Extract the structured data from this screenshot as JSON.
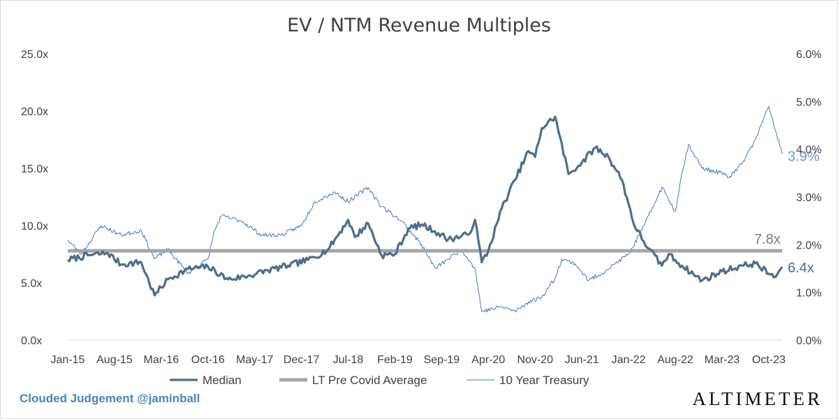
{
  "footer": {
    "credit": "Clouded Judgement @jaminball",
    "brand": "Altimeter"
  },
  "chart_data": {
    "type": "line",
    "title": "EV / NTM Revenue Multiples",
    "left_axis": {
      "ylim": [
        0,
        25
      ],
      "ticks": [
        0,
        5,
        10,
        15,
        20,
        25
      ],
      "tick_labels": [
        "0.0x",
        "5.0x",
        "10.0x",
        "15.0x",
        "20.0x",
        "25.0x"
      ]
    },
    "right_axis": {
      "ylim": [
        0,
        6
      ],
      "ticks": [
        0,
        1,
        2,
        3,
        4,
        5,
        6
      ],
      "tick_labels": [
        "0.0%",
        "1.0%",
        "2.0%",
        "3.0%",
        "4.0%",
        "5.0%",
        "6.0%"
      ]
    },
    "x_tick_labels": [
      "Jan-15",
      "Aug-15",
      "Mar-16",
      "Oct-16",
      "May-17",
      "Dec-17",
      "Jul-18",
      "Feb-19",
      "Sep-19",
      "Apr-20",
      "Nov-20",
      "Jun-21",
      "Jan-22",
      "Aug-22",
      "Mar-23",
      "Oct-23"
    ],
    "x_range": [
      "Jan-15",
      "Dec-23"
    ],
    "grid": false,
    "legend_position": "bottom",
    "series": [
      {
        "name": "Median",
        "axis": "left",
        "color": "#4f6e8a",
        "points": [
          [
            "Jan-15",
            7.0
          ],
          [
            "Apr-15",
            7.4
          ],
          [
            "Jul-15",
            7.6
          ],
          [
            "Sep-15",
            6.6
          ],
          [
            "Dec-15",
            6.8
          ],
          [
            "Feb-16",
            3.9
          ],
          [
            "Apr-16",
            5.3
          ],
          [
            "Jul-16",
            6.2
          ],
          [
            "Oct-16",
            6.4
          ],
          [
            "Jan-17",
            5.3
          ],
          [
            "Apr-17",
            5.6
          ],
          [
            "Jul-17",
            6.1
          ],
          [
            "Oct-17",
            6.5
          ],
          [
            "Jan-18",
            7.0
          ],
          [
            "Apr-18",
            7.9
          ],
          [
            "Jul-18",
            10.5
          ],
          [
            "Aug-18",
            9.0
          ],
          [
            "Oct-18",
            10.2
          ],
          [
            "Dec-18",
            7.4
          ],
          [
            "Feb-19",
            7.5
          ],
          [
            "Apr-19",
            9.7
          ],
          [
            "Jun-19",
            10.1
          ],
          [
            "Aug-19",
            9.5
          ],
          [
            "Oct-19",
            8.8
          ],
          [
            "Jan-20",
            9.2
          ],
          [
            "Feb-20",
            10.5
          ],
          [
            "Mar-20",
            6.8
          ],
          [
            "Apr-20",
            7.8
          ],
          [
            "Jun-20",
            11.5
          ],
          [
            "Aug-20",
            14.0
          ],
          [
            "Oct-20",
            16.5
          ],
          [
            "Nov-20",
            16.0
          ],
          [
            "Dec-20",
            18.5
          ],
          [
            "Feb-21",
            19.5
          ],
          [
            "Apr-21",
            14.5
          ],
          [
            "Jun-21",
            15.5
          ],
          [
            "Aug-21",
            16.8
          ],
          [
            "Oct-21",
            16.0
          ],
          [
            "Dec-21",
            14.0
          ],
          [
            "Feb-22",
            9.8
          ],
          [
            "Apr-22",
            8.0
          ],
          [
            "Jun-22",
            6.5
          ],
          [
            "Jul-22",
            7.5
          ],
          [
            "Sep-22",
            6.5
          ],
          [
            "Dec-22",
            5.2
          ],
          [
            "Mar-23",
            6.0
          ],
          [
            "Jun-23",
            6.5
          ],
          [
            "Aug-23",
            6.7
          ],
          [
            "Oct-23",
            5.8
          ],
          [
            "Nov-23",
            5.5
          ],
          [
            "Dec-23",
            6.4
          ]
        ]
      },
      {
        "name": "LT Pre Covid Average",
        "axis": "left",
        "color": "#a6a6a6",
        "points": [
          [
            "Jan-15",
            7.8
          ],
          [
            "Dec-23",
            7.8
          ]
        ]
      },
      {
        "name": "10 Year Treasury",
        "axis": "right",
        "color": "#4472c4",
        "points": [
          [
            "Jan-15",
            2.1
          ],
          [
            "Mar-15",
            1.8
          ],
          [
            "Jun-15",
            2.4
          ],
          [
            "Sep-15",
            2.2
          ],
          [
            "Dec-15",
            2.3
          ],
          [
            "Feb-16",
            1.7
          ],
          [
            "Apr-16",
            1.9
          ],
          [
            "Jul-16",
            1.4
          ],
          [
            "Oct-16",
            1.7
          ],
          [
            "Nov-16",
            2.3
          ],
          [
            "Dec-16",
            2.6
          ],
          [
            "Mar-17",
            2.5
          ],
          [
            "Jun-17",
            2.2
          ],
          [
            "Sep-17",
            2.2
          ],
          [
            "Dec-17",
            2.4
          ],
          [
            "Feb-18",
            2.9
          ],
          [
            "May-18",
            3.1
          ],
          [
            "Jul-18",
            2.9
          ],
          [
            "Oct-18",
            3.2
          ],
          [
            "Dec-18",
            2.8
          ],
          [
            "Mar-19",
            2.5
          ],
          [
            "Jun-19",
            2.0
          ],
          [
            "Aug-19",
            1.5
          ],
          [
            "Oct-19",
            1.7
          ],
          [
            "Dec-19",
            1.9
          ],
          [
            "Feb-20",
            1.5
          ],
          [
            "Mar-20",
            0.6
          ],
          [
            "Jun-20",
            0.7
          ],
          [
            "Aug-20",
            0.6
          ],
          [
            "Oct-20",
            0.8
          ],
          [
            "Dec-20",
            0.9
          ],
          [
            "Feb-21",
            1.3
          ],
          [
            "Mar-21",
            1.7
          ],
          [
            "May-21",
            1.6
          ],
          [
            "Jul-21",
            1.25
          ],
          [
            "Sep-21",
            1.4
          ],
          [
            "Nov-21",
            1.6
          ],
          [
            "Jan-22",
            1.8
          ],
          [
            "Mar-22",
            2.3
          ],
          [
            "May-22",
            2.9
          ],
          [
            "Jun-22",
            3.2
          ],
          [
            "Aug-22",
            2.7
          ],
          [
            "Sep-22",
            3.5
          ],
          [
            "Oct-22",
            4.1
          ],
          [
            "Dec-22",
            3.6
          ],
          [
            "Mar-23",
            3.5
          ],
          [
            "Apr-23",
            3.4
          ],
          [
            "Jun-23",
            3.7
          ],
          [
            "Aug-23",
            4.2
          ],
          [
            "Oct-23",
            4.9
          ],
          [
            "Nov-23",
            4.4
          ],
          [
            "Dec-23",
            3.9
          ]
        ]
      }
    ],
    "end_labels": [
      {
        "series": "Median",
        "text": "6.4x",
        "color": "#4f6e8a"
      },
      {
        "series": "LT Pre Covid Average",
        "text": "7.8x",
        "color": "#7f7f7f"
      },
      {
        "series": "10 Year Treasury",
        "text": "3.9%",
        "color": "#6f94c8"
      }
    ]
  }
}
